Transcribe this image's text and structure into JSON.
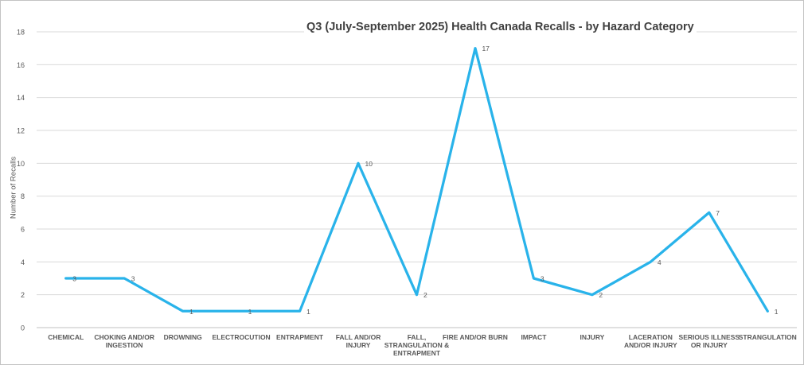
{
  "chart_data": {
    "type": "line",
    "title": "Q3 (July-September 2025) Health Canada Recalls - by Hazard Category",
    "xlabel": "",
    "ylabel": "Number of Recalls",
    "categories": [
      "CHEMICAL",
      "CHOKING AND/OR INGESTION",
      "DROWNING",
      "ELECTROCUTION",
      "ENTRAPMENT",
      "FALL AND/OR INJURY",
      "FALL, STRANGULATION & ENTRAPMENT",
      "FIRE AND/OR BURN",
      "IMPACT",
      "INJURY",
      "LACERATION AND/OR INJURY",
      "SERIOUS ILLNESS OR INJURY",
      "STRANGULATION"
    ],
    "category_label_lines": [
      [
        "CHEMICAL"
      ],
      [
        "CHOKING AND/OR",
        "INGESTION"
      ],
      [
        "DROWNING"
      ],
      [
        "ELECTROCUTION"
      ],
      [
        "ENTRAPMENT"
      ],
      [
        "FALL AND/OR",
        "INJURY"
      ],
      [
        "FALL,",
        "STRANGULATION &",
        "ENTRAPMENT"
      ],
      [
        "FIRE AND/OR BURN"
      ],
      [
        "IMPACT"
      ],
      [
        "INJURY"
      ],
      [
        "LACERATION",
        "AND/OR INJURY"
      ],
      [
        "SERIOUS ILLNESS",
        "OR INJURY"
      ],
      [
        "STRANGULATION"
      ]
    ],
    "values": [
      3,
      3,
      1,
      1,
      1,
      10,
      2,
      17,
      3,
      2,
      4,
      7,
      1
    ],
    "data_labels": [
      "3",
      "3",
      "1",
      "1",
      "1",
      "10",
      "2",
      "17",
      "3",
      "2",
      "4",
      "7",
      "1"
    ],
    "ylim": [
      0,
      18
    ],
    "yticks": [
      0,
      2,
      4,
      6,
      8,
      10,
      12,
      14,
      16,
      18
    ],
    "grid": true,
    "legend": "none",
    "colors": {
      "line": "#29b3ea",
      "gridline": "#d9d9d9",
      "axis_line": "#c0c0c0",
      "tick_label": "#595959",
      "category_label": "#595959",
      "data_label": "#595959",
      "title": "#404040"
    }
  }
}
